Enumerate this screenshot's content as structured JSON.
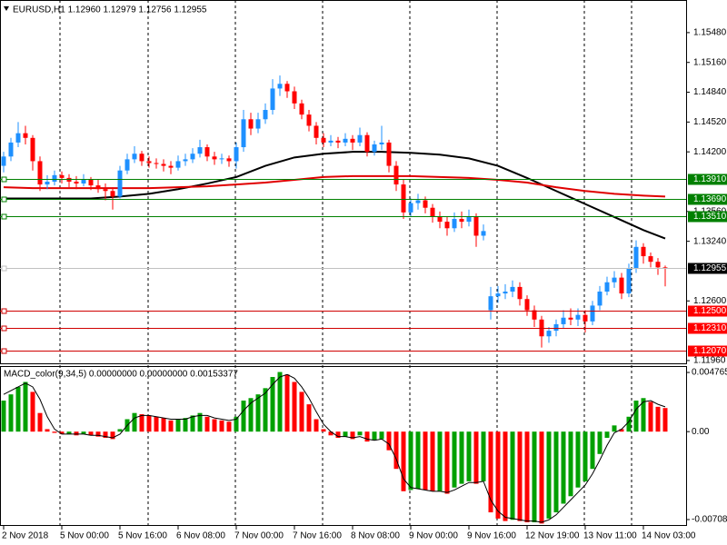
{
  "chart_data": [
    {
      "type": "candlestick",
      "title": "EURUSD,H1  1.12960 1.12979 1.12756 1.12955",
      "up_color": "#1e90ff",
      "down_color": "#ff0000",
      "xlim": [
        -0.5,
        93.875
      ],
      "ylim": [
        1.1193,
        1.1583
      ],
      "yticks": [
        {
          "value": 1.1548,
          "label": "1.15480"
        },
        {
          "value": 1.1516,
          "label": "1.15160"
        },
        {
          "value": 1.1484,
          "label": "1.14840"
        },
        {
          "value": 1.1452,
          "label": "1.14520"
        },
        {
          "value": 1.142,
          "label": "1.14200"
        },
        {
          "value": 1.1356,
          "label": "1.13560"
        },
        {
          "value": 1.1324,
          "label": "1.13240"
        },
        {
          "value": 1.126,
          "label": "1.12600"
        },
        {
          "value": 1.1196,
          "label": "1.11960"
        }
      ],
      "levels": [
        {
          "value": 1.1391,
          "label": "1.13910",
          "color": "#008000",
          "bg": "#008000"
        },
        {
          "value": 1.1369,
          "label": "1.13690",
          "color": "#008000",
          "bg": "#008000"
        },
        {
          "value": 1.1351,
          "label": "1.13510",
          "color": "#008000",
          "bg": "#008000"
        },
        {
          "value": 1.12955,
          "label": "1.12955",
          "color": "#c0c0c0",
          "bg": "#000000"
        },
        {
          "value": 1.125,
          "label": "1.12500",
          "color": "#d00000",
          "bg": "#ff0000"
        },
        {
          "value": 1.1231,
          "label": "1.12310",
          "color": "#d00000",
          "bg": "#ff0000"
        },
        {
          "value": 1.1207,
          "label": "1.12070",
          "color": "#d00000",
          "bg": "#ff0000"
        }
      ],
      "ohlc": [
        [
          1.1405,
          1.142,
          1.1398,
          1.1415
        ],
        [
          1.1415,
          1.1435,
          1.141,
          1.143
        ],
        [
          1.143,
          1.1452,
          1.1425,
          1.144
        ],
        [
          1.144,
          1.1448,
          1.1428,
          1.1435
        ],
        [
          1.1435,
          1.1438,
          1.14,
          1.141
        ],
        [
          1.141,
          1.1415,
          1.1378,
          1.1385
        ],
        [
          1.1385,
          1.1395,
          1.138,
          1.1388
        ],
        [
          1.1388,
          1.14,
          1.1384,
          1.1395
        ],
        [
          1.1395,
          1.1399,
          1.1386,
          1.1392
        ],
        [
          1.1392,
          1.1396,
          1.1382,
          1.1388
        ],
        [
          1.1388,
          1.1394,
          1.138,
          1.1386
        ],
        [
          1.1386,
          1.1396,
          1.1383,
          1.139
        ],
        [
          1.139,
          1.1393,
          1.1379,
          1.1384
        ],
        [
          1.1384,
          1.139,
          1.1376,
          1.138
        ],
        [
          1.138,
          1.1386,
          1.1368,
          1.1378
        ],
        [
          1.1378,
          1.1382,
          1.1358,
          1.1372
        ],
        [
          1.1372,
          1.1405,
          1.137,
          1.14
        ],
        [
          1.14,
          1.1418,
          1.1396,
          1.1412
        ],
        [
          1.1412,
          1.1426,
          1.1408,
          1.1418
        ],
        [
          1.1418,
          1.1421,
          1.1405,
          1.141
        ],
        [
          1.141,
          1.1415,
          1.1403,
          1.1408
        ],
        [
          1.1408,
          1.1413,
          1.1402,
          1.1407
        ],
        [
          1.1407,
          1.1412,
          1.1399,
          1.1405
        ],
        [
          1.1405,
          1.141,
          1.1396,
          1.1403
        ],
        [
          1.1403,
          1.1416,
          1.14,
          1.141
        ],
        [
          1.141,
          1.1418,
          1.1405,
          1.1412
        ],
        [
          1.1412,
          1.1424,
          1.1408,
          1.1418
        ],
        [
          1.1418,
          1.1433,
          1.1414,
          1.1425
        ],
        [
          1.1425,
          1.1428,
          1.141,
          1.1415
        ],
        [
          1.1415,
          1.142,
          1.1406,
          1.1412
        ],
        [
          1.1412,
          1.1418,
          1.1407,
          1.1413
        ],
        [
          1.1413,
          1.1416,
          1.1404,
          1.141
        ],
        [
          1.141,
          1.143,
          1.1402,
          1.1425
        ],
        [
          1.1425,
          1.1465,
          1.142,
          1.1455
        ],
        [
          1.1455,
          1.1462,
          1.1438,
          1.1445
        ],
        [
          1.1445,
          1.1462,
          1.144,
          1.1455
        ],
        [
          1.1455,
          1.1472,
          1.145,
          1.1465
        ],
        [
          1.1465,
          1.1498,
          1.146,
          1.1488
        ],
        [
          1.1488,
          1.1502,
          1.148,
          1.1493
        ],
        [
          1.1493,
          1.1496,
          1.1478,
          1.1485
        ],
        [
          1.1485,
          1.149,
          1.1466,
          1.1472
        ],
        [
          1.1472,
          1.1476,
          1.1455,
          1.146
        ],
        [
          1.146,
          1.1465,
          1.1442,
          1.1448
        ],
        [
          1.1448,
          1.1452,
          1.1428,
          1.1435
        ],
        [
          1.1435,
          1.144,
          1.1425,
          1.143
        ],
        [
          1.143,
          1.1438,
          1.1426,
          1.1432
        ],
        [
          1.1432,
          1.1436,
          1.1424,
          1.143
        ],
        [
          1.143,
          1.144,
          1.1426,
          1.1434
        ],
        [
          1.1434,
          1.1438,
          1.1422,
          1.143
        ],
        [
          1.143,
          1.1446,
          1.1426,
          1.1438
        ],
        [
          1.1438,
          1.1441,
          1.1415,
          1.142
        ],
        [
          1.142,
          1.1432,
          1.1416,
          1.1428
        ],
        [
          1.1428,
          1.1448,
          1.1422,
          1.143
        ],
        [
          1.143,
          1.1433,
          1.1398,
          1.1405
        ],
        [
          1.1405,
          1.141,
          1.1378,
          1.1385
        ],
        [
          1.1385,
          1.139,
          1.1348,
          1.1355
        ],
        [
          1.1355,
          1.137,
          1.135,
          1.1365
        ],
        [
          1.1365,
          1.1375,
          1.1358,
          1.1368
        ],
        [
          1.1368,
          1.1372,
          1.1354,
          1.136
        ],
        [
          1.136,
          1.1364,
          1.1344,
          1.135
        ],
        [
          1.135,
          1.1356,
          1.1338,
          1.1345
        ],
        [
          1.1345,
          1.135,
          1.133,
          1.1338
        ],
        [
          1.1338,
          1.1355,
          1.1334,
          1.1348
        ],
        [
          1.1348,
          1.1356,
          1.1338,
          1.1345
        ],
        [
          1.1345,
          1.1358,
          1.134,
          1.135
        ],
        [
          1.135,
          1.1354,
          1.1318,
          1.133
        ],
        [
          1.133,
          1.1342,
          1.1325,
          1.1335
        ],
        [
          1.125,
          1.1275,
          1.124,
          1.1265
        ],
        [
          1.1265,
          1.1276,
          1.1258,
          1.1268
        ],
        [
          1.1268,
          1.1278,
          1.1262,
          1.127
        ],
        [
          1.127,
          1.1282,
          1.1264,
          1.1275
        ],
        [
          1.1275,
          1.128,
          1.1255,
          1.1262
        ],
        [
          1.1262,
          1.1266,
          1.1244,
          1.125
        ],
        [
          1.125,
          1.1255,
          1.1232,
          1.124
        ],
        [
          1.124,
          1.1244,
          1.121,
          1.1222
        ],
        [
          1.1222,
          1.1232,
          1.1215,
          1.1228
        ],
        [
          1.1228,
          1.124,
          1.1222,
          1.1235
        ],
        [
          1.1235,
          1.125,
          1.123,
          1.1242
        ],
        [
          1.1242,
          1.1252,
          1.1234,
          1.124
        ],
        [
          1.124,
          1.1252,
          1.1233,
          1.1245
        ],
        [
          1.1245,
          1.125,
          1.1226,
          1.1238
        ],
        [
          1.1238,
          1.126,
          1.1234,
          1.1255
        ],
        [
          1.1255,
          1.1276,
          1.125,
          1.127
        ],
        [
          1.127,
          1.1286,
          1.1266,
          1.128
        ],
        [
          1.128,
          1.1292,
          1.1274,
          1.1285
        ],
        [
          1.1285,
          1.129,
          1.1262,
          1.1268
        ],
        [
          1.1268,
          1.13,
          1.1264,
          1.1295
        ],
        [
          1.1295,
          1.1325,
          1.129,
          1.1318
        ],
        [
          1.1318,
          1.1322,
          1.13,
          1.1308
        ],
        [
          1.1308,
          1.1312,
          1.1296,
          1.1302
        ],
        [
          1.1302,
          1.1306,
          1.1288,
          1.1296
        ],
        [
          1.1296,
          1.12979,
          1.12756,
          1.12955
        ]
      ],
      "overlays": [
        {
          "color": "#000000",
          "x": [
            0,
            4,
            8,
            12,
            16,
            20,
            24,
            28,
            32,
            36,
            40,
            44,
            48,
            52,
            56,
            60,
            64,
            68,
            72,
            76,
            80,
            84,
            88,
            91
          ],
          "values": [
            1.137,
            1.137,
            1.137,
            1.137,
            1.1372,
            1.1375,
            1.138,
            1.1386,
            1.1393,
            1.1405,
            1.1414,
            1.1418,
            1.142,
            1.142,
            1.1419,
            1.1417,
            1.1413,
            1.1405,
            1.1392,
            1.1378,
            1.1364,
            1.135,
            1.1336,
            1.1327
          ]
        },
        {
          "color": "#e00000",
          "x": [
            0,
            4,
            8,
            12,
            16,
            20,
            24,
            28,
            32,
            36,
            40,
            44,
            48,
            52,
            56,
            60,
            64,
            68,
            72,
            76,
            80,
            84,
            88,
            91
          ],
          "values": [
            1.1382,
            1.1381,
            1.1381,
            1.1381,
            1.1381,
            1.1381,
            1.1382,
            1.1383,
            1.1385,
            1.1387,
            1.139,
            1.1393,
            1.1394,
            1.1394,
            1.1394,
            1.1393,
            1.1392,
            1.139,
            1.1387,
            1.1382,
            1.1378,
            1.1375,
            1.1373,
            1.1372
          ]
        }
      ]
    },
    {
      "type": "macd",
      "title": "MACD_color(9,34,5) 0.00000000 0.00000000 0.00153377",
      "up_color": "#00a000",
      "down_color": "#ff0000",
      "signal_color": "#000000",
      "xlim": [
        -0.5,
        93.875
      ],
      "ylim": [
        -0.00752,
        0.00528
      ],
      "yticks": [
        0.004765,
        {
          "value": 0,
          "label": "0.00"
        },
        {
          "value": -0.00708,
          "label": "-0.007080"
        }
      ],
      "xticks": [
        {
          "value": 0,
          "label": "2 Nov 2018"
        },
        {
          "value": 8,
          "label": "5 Nov 00:00"
        },
        {
          "value": 16,
          "label": "5 Nov 16:00"
        },
        {
          "value": 24,
          "label": "6 Nov 08:00"
        },
        {
          "value": 32,
          "label": "7 Nov 00:00"
        },
        {
          "value": 40,
          "label": "7 Nov 16:00"
        },
        {
          "value": 48,
          "label": "8 Nov 08:00"
        },
        {
          "value": 56,
          "label": "9 Nov 00:00"
        },
        {
          "value": 64,
          "label": "9 Nov 16:00"
        },
        {
          "value": 72,
          "label": "12 Nov 19:00"
        },
        {
          "value": 80,
          "label": "13 Nov 11:00"
        },
        {
          "value": 88,
          "label": "14 Nov 03:00"
        }
      ],
      "values": [
        0.0025,
        0.003,
        0.0036,
        0.004,
        0.0032,
        0.0015,
        0.0002,
        -0.0001,
        -0.0002,
        -0.0002,
        -0.0003,
        -0.0002,
        -0.0003,
        -0.0004,
        -0.0005,
        -0.0006,
        0.0002,
        0.001,
        0.0015,
        0.0014,
        0.0013,
        0.0012,
        0.0011,
        0.0009,
        0.001,
        0.0011,
        0.0013,
        0.0015,
        0.0012,
        0.001,
        0.0009,
        0.0008,
        0.0012,
        0.0025,
        0.0027,
        0.003,
        0.0035,
        0.0044,
        0.0048,
        0.0046,
        0.004,
        0.0032,
        0.0022,
        0.001,
        0.0002,
        -0.0003,
        -0.0005,
        -0.0004,
        -0.0006,
        -0.0003,
        -0.0008,
        -0.0007,
        -0.0006,
        -0.0015,
        -0.003,
        -0.0048,
        -0.0047,
        -0.0046,
        -0.0047,
        -0.0048,
        -0.0048,
        -0.005,
        -0.0045,
        -0.0042,
        -0.004,
        -0.0042,
        -0.004,
        -0.0065,
        -0.007,
        -0.0072,
        -0.0071,
        -0.0072,
        -0.0073,
        -0.0073,
        -0.0074,
        -0.007,
        -0.0065,
        -0.0058,
        -0.0052,
        -0.0045,
        -0.004,
        -0.003,
        -0.0018,
        -0.0005,
        0.0005,
        0.0002,
        0.0012,
        0.0025,
        0.0027,
        0.0024,
        0.002,
        0.0019
      ],
      "signal": [
        0.003,
        0.0033,
        0.0036,
        0.0039,
        0.0036,
        0.0026,
        0.0012,
        0.0002,
        -0.0002,
        -0.0002,
        -0.0002,
        -0.0002,
        -0.0003,
        -0.0003,
        -0.0004,
        -0.0005,
        -0.0002,
        0.0005,
        0.0011,
        0.0013,
        0.0013,
        0.0012,
        0.0011,
        0.001,
        0.001,
        0.001,
        0.0012,
        0.0013,
        0.0013,
        0.0011,
        0.001,
        0.0009,
        0.001,
        0.0017,
        0.0023,
        0.0027,
        0.0031,
        0.0038,
        0.0044,
        0.0046,
        0.0043,
        0.0036,
        0.0027,
        0.0016,
        0.0006,
        0,
        -0.0004,
        -0.0004,
        -0.0005,
        -0.0004,
        -0.0006,
        -0.0007,
        -0.0006,
        -0.001,
        -0.0022,
        -0.0038,
        -0.0045,
        -0.0046,
        -0.0047,
        -0.0048,
        -0.0048,
        -0.0049,
        -0.0047,
        -0.0044,
        -0.0041,
        -0.0041,
        -0.004,
        -0.0055,
        -0.0064,
        -0.0069,
        -0.007,
        -0.0071,
        -0.0072,
        -0.0072,
        -0.0073,
        -0.0071,
        -0.0067,
        -0.0061,
        -0.0055,
        -0.0049,
        -0.0043,
        -0.0034,
        -0.0023,
        -0.0011,
        -0.0001,
        0.0002,
        0.0008,
        0.0018,
        0.0024,
        0.0025,
        0.0022,
        0.002
      ]
    }
  ]
}
